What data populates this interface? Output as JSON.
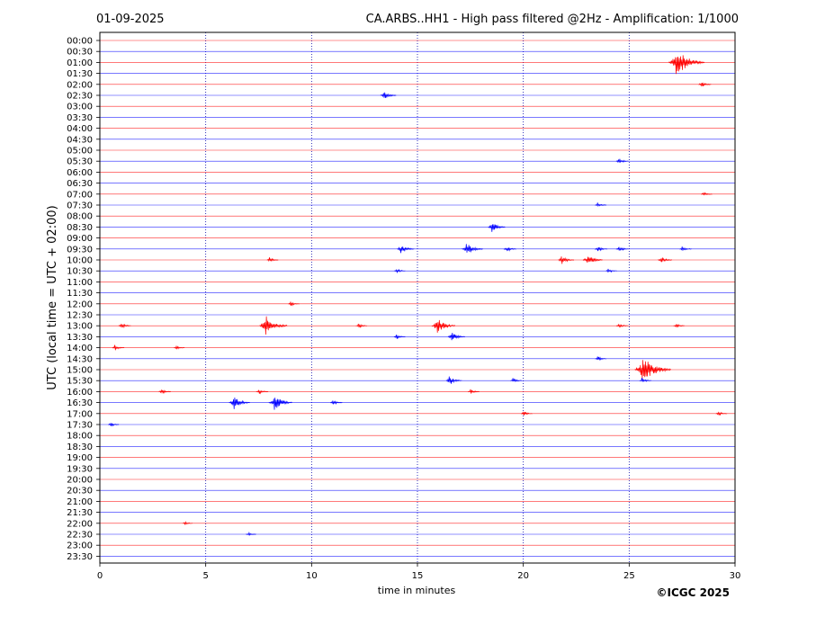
{
  "header": {
    "date": "01-09-2025",
    "title": "CA.ARBS..HH1 - High pass filtered @2Hz - Amplification: 1/1000"
  },
  "footer": {
    "copyright": "©ICGC 2025"
  },
  "colors": {
    "trace_a": "#ff0000",
    "trace_b": "#0000ff",
    "grid": "#0000aa",
    "axis": "#000000"
  },
  "chart_data": {
    "type": "line",
    "subtype": "helicorder",
    "xlabel": "time in minutes",
    "ylabel": "UTC (local time = UTC + 02:00)",
    "xlim": [
      0,
      30
    ],
    "xticks": [
      0,
      5,
      10,
      15,
      20,
      25,
      30
    ],
    "vertical_grid": [
      5,
      10,
      15,
      20,
      25
    ],
    "grid": "dotted vertical",
    "row_interval_minutes": 30,
    "rows": [
      "00:00",
      "00:30",
      "01:00",
      "01:30",
      "02:00",
      "02:30",
      "03:00",
      "03:30",
      "04:00",
      "04:30",
      "05:00",
      "05:30",
      "06:00",
      "06:30",
      "07:00",
      "07:30",
      "08:00",
      "08:30",
      "09:00",
      "09:30",
      "10:00",
      "10:30",
      "11:00",
      "11:30",
      "12:00",
      "12:30",
      "13:00",
      "13:30",
      "14:00",
      "14:30",
      "15:00",
      "15:30",
      "16:00",
      "16:30",
      "17:00",
      "17:30",
      "18:00",
      "18:30",
      "19:00",
      "19:30",
      "20:00",
      "20:30",
      "21:00",
      "21:30",
      "22:00",
      "22:30",
      "23:00",
      "23:30"
    ],
    "trace_colors": [
      "#ff0000",
      "#0000ff"
    ],
    "events": [
      {
        "row": "01:00",
        "minute": 27.2,
        "amplitude": 1.0
      },
      {
        "row": "02:00",
        "minute": 28.4,
        "amplitude": 0.15
      },
      {
        "row": "02:30",
        "minute": 13.4,
        "amplitude": 0.25
      },
      {
        "row": "05:30",
        "minute": 24.5,
        "amplitude": 0.15
      },
      {
        "row": "07:00",
        "minute": 28.5,
        "amplitude": 0.1
      },
      {
        "row": "07:30",
        "minute": 23.5,
        "amplitude": 0.1
      },
      {
        "row": "08:30",
        "minute": 18.5,
        "amplitude": 0.3
      },
      {
        "row": "09:30",
        "minute": 14.2,
        "amplitude": 0.3
      },
      {
        "row": "09:30",
        "minute": 17.3,
        "amplitude": 0.45
      },
      {
        "row": "09:30",
        "minute": 19.2,
        "amplitude": 0.15
      },
      {
        "row": "09:30",
        "minute": 23.5,
        "amplitude": 0.15
      },
      {
        "row": "09:30",
        "minute": 24.5,
        "amplitude": 0.15
      },
      {
        "row": "09:30",
        "minute": 27.5,
        "amplitude": 0.12
      },
      {
        "row": "10:00",
        "minute": 21.8,
        "amplitude": 0.25
      },
      {
        "row": "10:00",
        "minute": 23.0,
        "amplitude": 0.4
      },
      {
        "row": "10:00",
        "minute": 26.5,
        "amplitude": 0.2
      },
      {
        "row": "10:00",
        "minute": 8.0,
        "amplitude": 0.1
      },
      {
        "row": "10:30",
        "minute": 14.0,
        "amplitude": 0.1
      },
      {
        "row": "10:30",
        "minute": 24.0,
        "amplitude": 0.1
      },
      {
        "row": "12:00",
        "minute": 9.0,
        "amplitude": 0.1
      },
      {
        "row": "13:00",
        "minute": 1.0,
        "amplitude": 0.15
      },
      {
        "row": "13:00",
        "minute": 7.8,
        "amplitude": 0.7
      },
      {
        "row": "13:00",
        "minute": 12.2,
        "amplitude": 0.1
      },
      {
        "row": "13:00",
        "minute": 15.9,
        "amplitude": 0.55
      },
      {
        "row": "13:00",
        "minute": 24.5,
        "amplitude": 0.12
      },
      {
        "row": "13:00",
        "minute": 27.2,
        "amplitude": 0.1
      },
      {
        "row": "13:30",
        "minute": 14.0,
        "amplitude": 0.1
      },
      {
        "row": "13:30",
        "minute": 16.6,
        "amplitude": 0.3
      },
      {
        "row": "14:00",
        "minute": 0.7,
        "amplitude": 0.12
      },
      {
        "row": "14:00",
        "minute": 3.6,
        "amplitude": 0.08
      },
      {
        "row": "14:30",
        "minute": 23.5,
        "amplitude": 0.1
      },
      {
        "row": "15:00",
        "minute": 25.6,
        "amplitude": 1.0
      },
      {
        "row": "15:30",
        "minute": 16.5,
        "amplitude": 0.25
      },
      {
        "row": "15:30",
        "minute": 19.5,
        "amplitude": 0.1
      },
      {
        "row": "15:30",
        "minute": 25.6,
        "amplitude": 0.12
      },
      {
        "row": "16:00",
        "minute": 2.9,
        "amplitude": 0.12
      },
      {
        "row": "16:00",
        "minute": 7.5,
        "amplitude": 0.12
      },
      {
        "row": "16:00",
        "minute": 17.5,
        "amplitude": 0.1
      },
      {
        "row": "16:30",
        "minute": 6.3,
        "amplitude": 0.45
      },
      {
        "row": "16:30",
        "minute": 8.2,
        "amplitude": 0.55
      },
      {
        "row": "16:30",
        "minute": 11.0,
        "amplitude": 0.12
      },
      {
        "row": "17:00",
        "minute": 20.0,
        "amplitude": 0.1
      },
      {
        "row": "17:00",
        "minute": 29.2,
        "amplitude": 0.1
      },
      {
        "row": "17:30",
        "minute": 0.5,
        "amplitude": 0.08
      },
      {
        "row": "22:00",
        "minute": 4.0,
        "amplitude": 0.06
      },
      {
        "row": "22:30",
        "minute": 7.0,
        "amplitude": 0.06
      }
    ]
  }
}
